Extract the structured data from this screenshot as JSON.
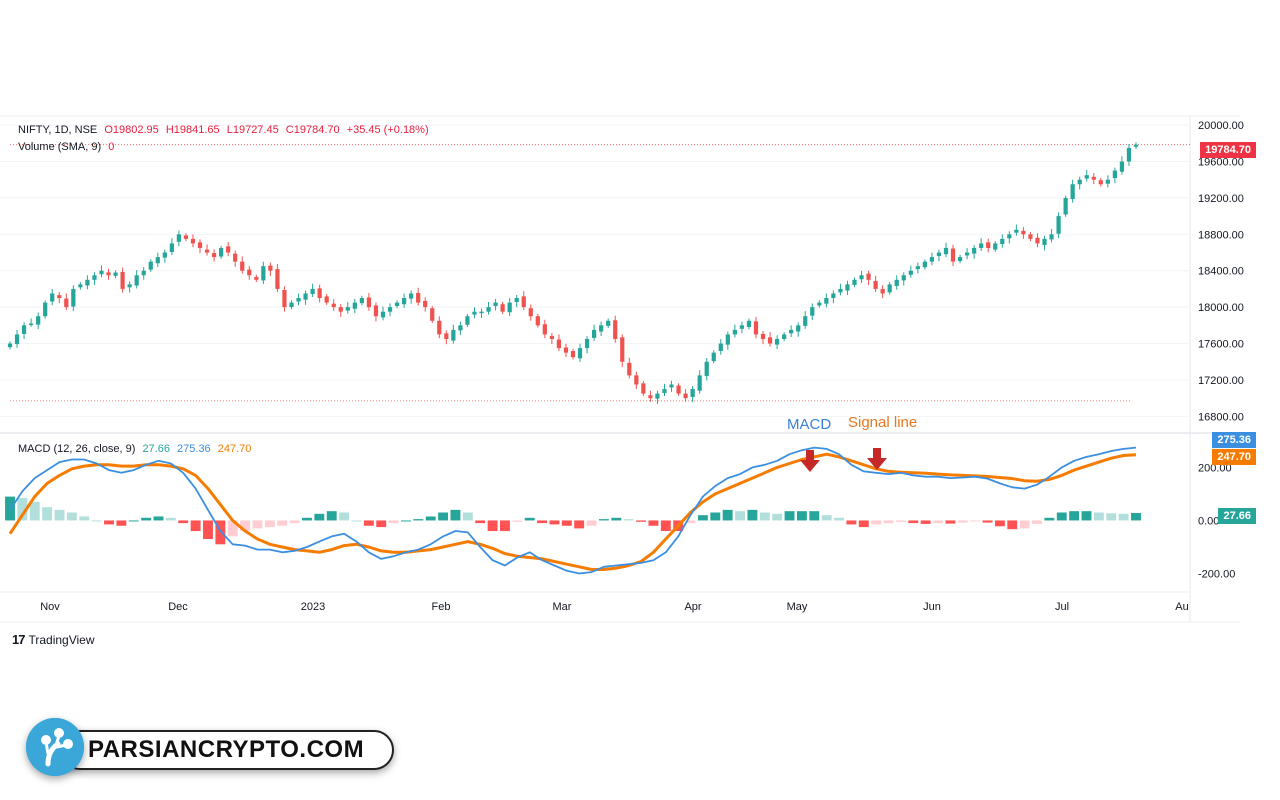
{
  "legend": {
    "symbol": "NIFTY, 1D, NSE",
    "open": "O19802.95",
    "high": "H19841.65",
    "low": "L19727.45",
    "close": "C19784.70",
    "change": "+35.45 (+0.18%)",
    "volume_label": "Volume (SMA, 9)",
    "volume_value": "0",
    "macd_label": "MACD (12, 26, close, 9)",
    "macd_hist": "27.66",
    "macd_line": "275.36",
    "macd_signal": "247.70"
  },
  "annotations": {
    "macd": "MACD",
    "signal": "Signal line"
  },
  "price_badge": "19784.70",
  "macd_badges": {
    "macd": "275.36",
    "signal": "247.70",
    "hist": "27.66"
  },
  "price_ticks": [
    "20000.00",
    "19600.00",
    "19200.00",
    "18800.00",
    "18400.00",
    "18000.00",
    "17600.00",
    "17200.00",
    "16800.00"
  ],
  "macd_ticks": [
    "200.00",
    "0.00",
    "-200.00"
  ],
  "time_ticks": [
    "Nov",
    "Dec",
    "2023",
    "Feb",
    "Mar",
    "Apr",
    "May",
    "Jun",
    "Jul",
    "Au"
  ],
  "branding": {
    "tradingview": "TradingView",
    "watermark": "PARSIANCRYPTO.COM"
  },
  "colors": {
    "up": "#26a69a",
    "down": "#ef5350",
    "macd_line": "#3b8fe0",
    "signal_line": "#f57c00",
    "price_badge": "#ef3345",
    "arrow": "#c62828"
  },
  "chart_data": [
    {
      "type": "candlestick",
      "title": "NIFTY, 1D, NSE",
      "ylim": [
        16650,
        20100
      ],
      "y_ticks": [
        20000,
        19600,
        19200,
        18800,
        18400,
        18000,
        17600,
        17200,
        16800
      ],
      "x_ticks": [
        "Nov",
        "Dec",
        "2023",
        "Feb",
        "Mar",
        "Apr",
        "May",
        "Jun",
        "Jul",
        "Au"
      ],
      "last_close": 19784.7,
      "low_marker": 16970,
      "closes": [
        17600,
        17700,
        17800,
        17820,
        17900,
        18050,
        18150,
        18100,
        18000,
        18200,
        18250,
        18300,
        18350,
        18400,
        18350,
        18380,
        18200,
        18250,
        18350,
        18400,
        18500,
        18550,
        18600,
        18700,
        18800,
        18750,
        18700,
        18650,
        18600,
        18550,
        18650,
        18600,
        18500,
        18400,
        18350,
        18300,
        18450,
        18400,
        18200,
        18000,
        18050,
        18100,
        18150,
        18200,
        18100,
        18050,
        18000,
        17950,
        18000,
        18050,
        18100,
        18000,
        17900,
        17950,
        18000,
        18050,
        18100,
        18150,
        18050,
        18000,
        17850,
        17700,
        17650,
        17750,
        17800,
        17900,
        17950,
        17950,
        18000,
        18050,
        17950,
        18050,
        18100,
        18000,
        17900,
        17800,
        17700,
        17650,
        17550,
        17500,
        17450,
        17550,
        17650,
        17750,
        17800,
        17850,
        17650,
        17400,
        17250,
        17150,
        17050,
        17000,
        17050,
        17100,
        17150,
        17050,
        17000,
        17100,
        17250,
        17400,
        17500,
        17600,
        17700,
        17750,
        17800,
        17850,
        17700,
        17650,
        17600,
        17650,
        17700,
        17750,
        17800,
        17900,
        18000,
        18050,
        18100,
        18150,
        18200,
        18250,
        18300,
        18350,
        18300,
        18200,
        18150,
        18250,
        18300,
        18350,
        18400,
        18450,
        18500,
        18550,
        18600,
        18650,
        18500,
        18550,
        18600,
        18650,
        18700,
        18650,
        18700,
        18750,
        18800,
        18850,
        18800,
        18750,
        18700,
        18750,
        18800,
        19000,
        19200,
        19350,
        19400,
        19450,
        19400,
        19350,
        19400,
        19500,
        19600,
        19750,
        19785
      ]
    },
    {
      "type": "macd",
      "title": "MACD (12, 26, close, 9)",
      "ylim": [
        -270,
        330
      ],
      "y_ticks": [
        200,
        0,
        -200
      ],
      "last": {
        "hist": 27.66,
        "macd": 275.36,
        "signal": 247.7
      },
      "macd": [
        40,
        110,
        160,
        190,
        220,
        230,
        230,
        215,
        190,
        180,
        190,
        210,
        225,
        215,
        180,
        120,
        40,
        -40,
        -90,
        -95,
        -110,
        -110,
        -120,
        -115,
        -100,
        -80,
        -60,
        -50,
        -80,
        -120,
        -145,
        -135,
        -120,
        -110,
        -90,
        -60,
        -40,
        -45,
        -100,
        -150,
        -170,
        -140,
        -120,
        -150,
        -170,
        -190,
        -200,
        -195,
        -175,
        -170,
        -165,
        -160,
        -150,
        -120,
        -60,
        20,
        90,
        130,
        160,
        175,
        200,
        210,
        225,
        250,
        265,
        275,
        270,
        250,
        210,
        185,
        180,
        175,
        180,
        170,
        165,
        165,
        160,
        162,
        165,
        158,
        140,
        125,
        120,
        135,
        165,
        200,
        225,
        240,
        250,
        262,
        270,
        275
      ],
      "signal": [
        -50,
        20,
        90,
        140,
        170,
        195,
        205,
        210,
        210,
        205,
        205,
        210,
        210,
        205,
        195,
        170,
        120,
        60,
        0,
        -40,
        -70,
        -90,
        -100,
        -110,
        -115,
        -120,
        -110,
        -95,
        -90,
        -100,
        -115,
        -120,
        -120,
        -115,
        -110,
        -100,
        -90,
        -80,
        -90,
        -105,
        -125,
        -135,
        -140,
        -145,
        -155,
        -165,
        -175,
        -185,
        -185,
        -180,
        -170,
        -155,
        -120,
        -70,
        -20,
        30,
        70,
        100,
        120,
        140,
        160,
        180,
        200,
        215,
        230,
        240,
        250,
        240,
        225,
        210,
        195,
        185,
        182,
        180,
        178,
        175,
        172,
        170,
        168,
        166,
        162,
        158,
        150,
        148,
        155,
        170,
        190,
        205,
        220,
        235,
        245,
        248
      ],
      "histogram": [
        90,
        85,
        70,
        50,
        40,
        30,
        15,
        0,
        -15,
        -20,
        0,
        10,
        15,
        10,
        -10,
        -40,
        -70,
        -90,
        -60,
        -40,
        -30,
        -25,
        -20,
        -10,
        10,
        25,
        35,
        30,
        0,
        -20,
        -25,
        -10,
        0,
        5,
        15,
        30,
        40,
        30,
        -10,
        -40,
        -40,
        -5,
        10,
        -10,
        -15,
        -20,
        -30,
        -20,
        5,
        10,
        5,
        -5,
        -20,
        -40,
        -40,
        -10,
        20,
        30,
        40,
        35,
        40,
        30,
        25,
        35,
        35,
        35,
        20,
        10,
        -15,
        -25,
        -15,
        -10,
        -5,
        -10,
        -13,
        -10,
        -12,
        -8,
        -3,
        -8,
        -22,
        -33,
        -30,
        -13,
        10,
        30,
        35,
        35,
        30,
        27,
        25,
        28
      ]
    }
  ]
}
